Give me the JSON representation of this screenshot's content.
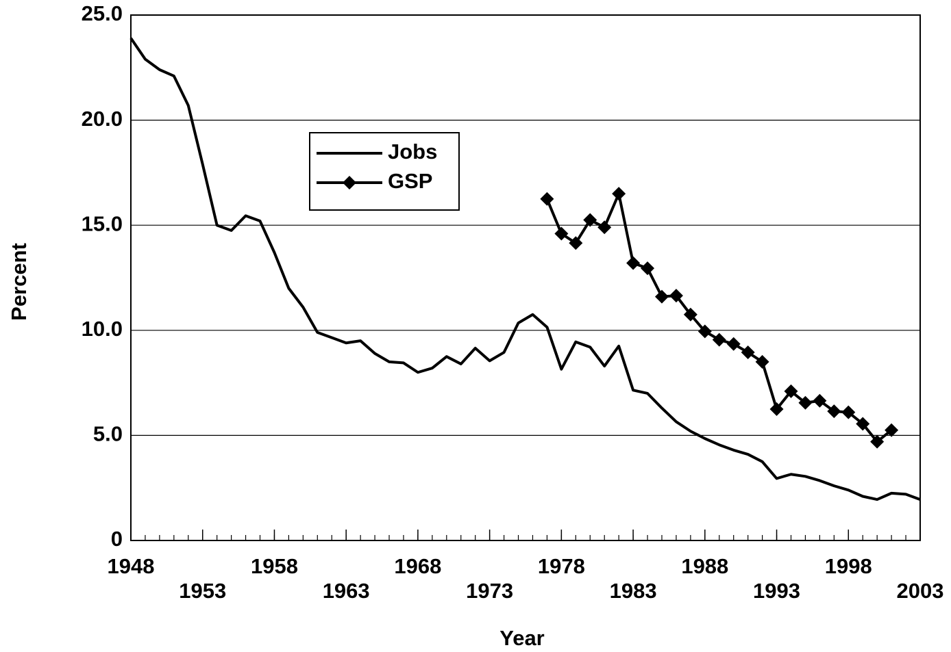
{
  "chart_data": {
    "type": "line",
    "x_label": "Year",
    "y_label": "Percent",
    "x": [
      1948,
      1949,
      1950,
      1951,
      1952,
      1953,
      1954,
      1955,
      1956,
      1957,
      1958,
      1959,
      1960,
      1961,
      1962,
      1963,
      1964,
      1965,
      1966,
      1967,
      1968,
      1969,
      1970,
      1971,
      1972,
      1973,
      1974,
      1975,
      1976,
      1977,
      1978,
      1979,
      1980,
      1981,
      1982,
      1983,
      1984,
      1985,
      1986,
      1987,
      1988,
      1989,
      1990,
      1991,
      1992,
      1993,
      1994,
      1995,
      1996,
      1997,
      1998,
      1999,
      2000,
      2001,
      2002,
      2003
    ],
    "series": [
      {
        "name": "Jobs",
        "color": "#000000",
        "marker": "none",
        "values": [
          23.9,
          22.9,
          22.4,
          22.1,
          20.7,
          17.9,
          15.0,
          14.75,
          15.45,
          15.2,
          13.7,
          12.0,
          11.1,
          9.9,
          9.65,
          9.4,
          9.5,
          8.9,
          8.5,
          8.45,
          8.0,
          8.2,
          8.75,
          8.4,
          9.15,
          8.55,
          8.95,
          10.35,
          10.75,
          10.15,
          8.15,
          9.45,
          9.2,
          8.3,
          9.25,
          7.15,
          7.0,
          6.3,
          5.65,
          5.2,
          4.85,
          4.55,
          4.3,
          4.1,
          3.75,
          2.95,
          3.15,
          3.05,
          2.85,
          2.6,
          2.4,
          2.1,
          1.95,
          2.25,
          2.2,
          1.95
        ]
      },
      {
        "name": "GSP",
        "color": "#000000",
        "marker": "diamond",
        "values": [
          null,
          null,
          null,
          null,
          null,
          null,
          null,
          null,
          null,
          null,
          null,
          null,
          null,
          null,
          null,
          null,
          null,
          null,
          null,
          null,
          null,
          null,
          null,
          null,
          null,
          null,
          null,
          null,
          null,
          16.25,
          14.6,
          14.15,
          15.25,
          14.9,
          16.5,
          13.2,
          12.95,
          11.6,
          11.65,
          10.75,
          9.95,
          9.55,
          9.35,
          8.95,
          8.5,
          6.25,
          7.1,
          6.55,
          6.65,
          6.15,
          6.1,
          5.55,
          4.7,
          5.25,
          null,
          null
        ]
      }
    ],
    "xlim": [
      1948,
      2003
    ],
    "xticks": [
      1948,
      1953,
      1958,
      1963,
      1968,
      1973,
      1978,
      1983,
      1988,
      1993,
      1998,
      2003
    ],
    "ylim": [
      0,
      25
    ],
    "yticks": [
      0,
      {
        "value": 5,
        "label": "5.0"
      },
      {
        "value": 10,
        "label": "10.0"
      },
      {
        "value": 15,
        "label": "15.0"
      },
      {
        "value": 20,
        "label": "20.0"
      },
      {
        "value": 25,
        "label": "25.0"
      }
    ],
    "grid": true,
    "legend": "upper-center-left"
  }
}
